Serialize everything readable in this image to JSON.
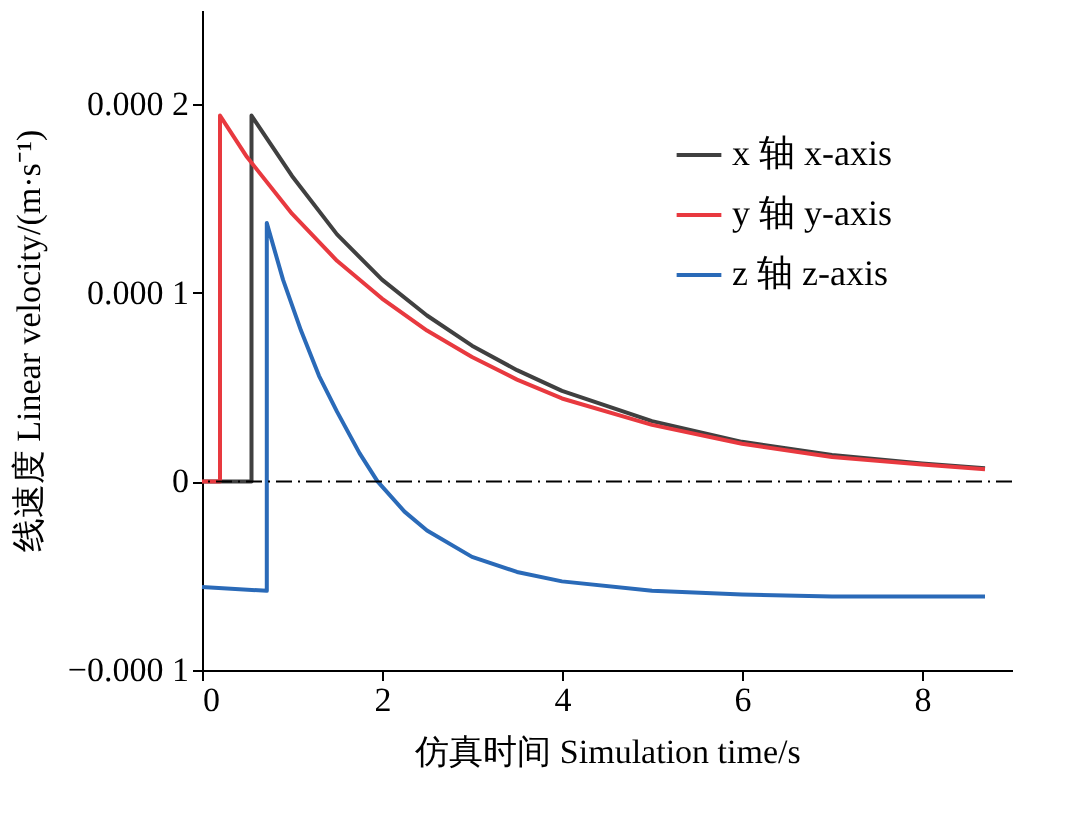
{
  "chart_data": {
    "type": "line",
    "xlabel": "仿真时间 Simulation time/s",
    "ylabel": "线速度 Linear velocity/(m·s⁻¹)",
    "xlim": [
      0,
      9
    ],
    "xticks": [
      0,
      2,
      4,
      6,
      8
    ],
    "ylim": [
      -0.0001,
      0.00025
    ],
    "yticks": [
      -0.0001,
      0,
      0.0001,
      0.0002
    ],
    "grid": false,
    "legend": "top right",
    "line_style": "solid",
    "ref_lines": [
      {
        "axis": "y",
        "value": 0,
        "label": null,
        "color": "#000000",
        "line_style": "dashed"
      }
    ],
    "series": [
      {
        "name": "x 轴 x-axis",
        "color": "#404040",
        "x": [
          0,
          0.55,
          0.55,
          1,
          1.5,
          2,
          2.5,
          3,
          3.5,
          4,
          5,
          6,
          7,
          8,
          8.7
        ],
        "values": [
          0,
          0,
          0.000194,
          0.000162,
          0.000131,
          0.000107,
          8.8e-05,
          7.2e-05,
          5.9e-05,
          4.8e-05,
          3.2e-05,
          2.1e-05,
          1.4e-05,
          9.5e-06,
          7e-06
        ]
      },
      {
        "name": "y 轴 y-axis",
        "color": "#e8393f",
        "x": [
          0,
          0.2,
          0.2,
          0.5,
          1,
          1.5,
          2,
          2.5,
          3,
          3.5,
          4,
          5,
          6,
          7,
          8,
          8.7
        ],
        "values": [
          0,
          0,
          0.000194,
          0.000172,
          0.000142,
          0.000117,
          9.7e-05,
          8e-05,
          6.6e-05,
          5.4e-05,
          4.4e-05,
          3e-05,
          2e-05,
          1.3e-05,
          9e-06,
          6.5e-06
        ]
      },
      {
        "name": "z 轴 z-axis",
        "color": "#2a6ab8",
        "x": [
          0,
          0.72,
          0.72,
          0.9,
          1.1,
          1.3,
          1.5,
          1.75,
          1.95,
          2.25,
          2.5,
          3,
          3.5,
          4,
          5,
          6,
          7,
          8.7
        ],
        "values": [
          -5.6e-05,
          -5.8e-05,
          0.000137,
          0.000107,
          8e-05,
          5.6e-05,
          3.7e-05,
          1.5e-05,
          0,
          -1.6e-05,
          -2.6e-05,
          -4e-05,
          -4.8e-05,
          -5.3e-05,
          -5.8e-05,
          -6e-05,
          -6.1e-05,
          -6.1e-05
        ]
      }
    ]
  }
}
